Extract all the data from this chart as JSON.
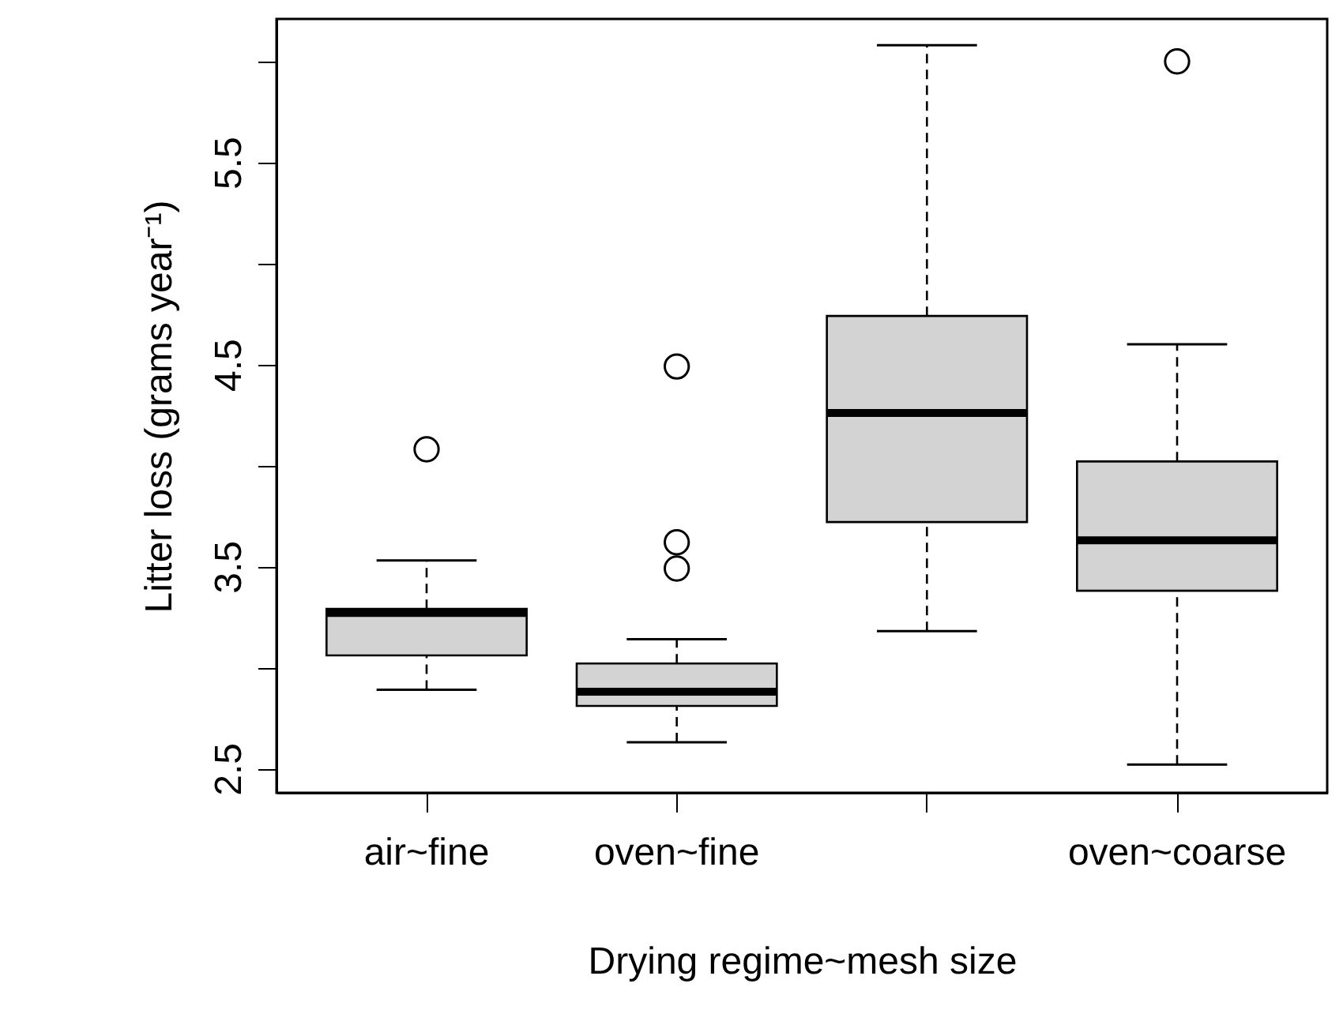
{
  "chart_data": {
    "type": "box",
    "xlabel": "Drying regime~mesh size",
    "ylabel": "Litter loss (grams year⁻¹)",
    "categories": [
      "air~fine",
      "oven~fine",
      null,
      "oven~coarse"
    ],
    "color": "#d3d3d3",
    "boxes": [
      {
        "low": 2.89,
        "q1": 3.06,
        "median": 3.27,
        "q3": 3.29,
        "high": 3.53,
        "outliers": [
          4.08
        ]
      },
      {
        "low": 2.63,
        "q1": 2.81,
        "median": 2.88,
        "q3": 3.02,
        "high": 3.14,
        "outliers": [
          4.49,
          3.62,
          3.49
        ]
      },
      {
        "low": 3.18,
        "q1": 3.72,
        "median": 4.26,
        "q3": 4.74,
        "high": 6.08
      },
      {
        "low": 2.52,
        "q1": 3.38,
        "median": 3.63,
        "q3": 4.02,
        "high": 4.6,
        "outliers": [
          6.0
        ]
      }
    ],
    "ylim": [
      2.38,
      6.21
    ],
    "yticks": [
      2.5,
      {
        "value": 3,
        "label": null
      },
      3.5,
      {
        "value": 4,
        "label": null
      },
      4.5,
      {
        "value": 5,
        "label": null
      },
      5.5,
      {
        "value": 6,
        "label": null
      }
    ],
    "grid": false
  }
}
